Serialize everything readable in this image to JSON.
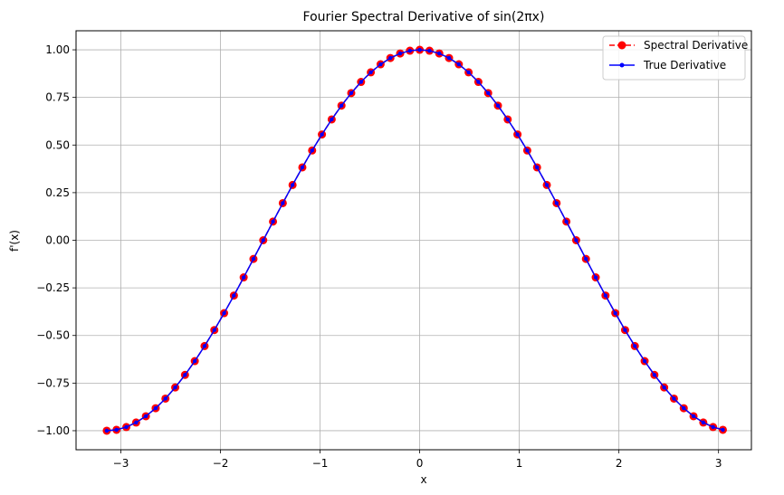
{
  "chart_data": {
    "type": "line",
    "title": "Fourier Spectral Derivative of sin(2πx)",
    "xlabel": "x",
    "ylabel": "f'(x)",
    "xlim": [
      -3.45,
      3.33
    ],
    "ylim": [
      -1.1,
      1.1
    ],
    "xticks": [
      -3,
      -2,
      -1,
      0,
      1,
      2,
      3
    ],
    "xtick_labels": [
      "−3",
      "−2",
      "−1",
      "0",
      "1",
      "2",
      "3"
    ],
    "yticks": [
      -1.0,
      -0.75,
      -0.5,
      -0.25,
      0.0,
      0.25,
      0.5,
      0.75,
      1.0
    ],
    "ytick_labels": [
      "−1.00",
      "−0.75",
      "−0.50",
      "−0.25",
      "0.00",
      "0.25",
      "0.50",
      "0.75",
      "1.00"
    ],
    "grid": true,
    "legend_position": "top-right",
    "x": [
      -3.1416,
      -3.0434,
      -2.9452,
      -2.8471,
      -2.7489,
      -2.6507,
      -2.5525,
      -2.4544,
      -2.3562,
      -2.258,
      -2.1598,
      -2.0617,
      -1.9635,
      -1.8653,
      -1.7671,
      -1.669,
      -1.5708,
      -1.4726,
      -1.3744,
      -1.2763,
      -1.1781,
      -1.0799,
      -0.9817,
      -0.8836,
      -0.7854,
      -0.6872,
      -0.589,
      -0.4909,
      -0.3927,
      -0.2945,
      -0.1963,
      -0.0982,
      0.0,
      0.0982,
      0.1963,
      0.2945,
      0.3927,
      0.4909,
      0.589,
      0.6872,
      0.7854,
      0.8836,
      0.9817,
      1.0799,
      1.1781,
      1.2763,
      1.3744,
      1.4726,
      1.5708,
      1.669,
      1.7671,
      1.8653,
      1.9635,
      2.0617,
      2.1598,
      2.258,
      2.3562,
      2.4544,
      2.5525,
      2.6507,
      2.7489,
      2.8471,
      2.9452,
      3.0434
    ],
    "series": [
      {
        "name": "Spectral Derivative",
        "color": "#ff0000",
        "style": "dashed-circle",
        "values": [
          -1.0,
          -0.9952,
          -0.9808,
          -0.9569,
          -0.9239,
          -0.8819,
          -0.8315,
          -0.773,
          -0.7071,
          -0.6344,
          -0.5556,
          -0.4714,
          -0.3827,
          -0.2903,
          -0.1951,
          -0.098,
          0.0,
          0.098,
          0.1951,
          0.2903,
          0.3827,
          0.4714,
          0.5556,
          0.6344,
          0.7071,
          0.773,
          0.8315,
          0.8819,
          0.9239,
          0.9569,
          0.9808,
          0.9952,
          1.0,
          0.9952,
          0.9808,
          0.9569,
          0.9239,
          0.8819,
          0.8315,
          0.773,
          0.7071,
          0.6344,
          0.5556,
          0.4714,
          0.3827,
          0.2903,
          0.1951,
          0.098,
          0.0,
          -0.098,
          -0.1951,
          -0.2903,
          -0.3827,
          -0.4714,
          -0.5556,
          -0.6344,
          -0.7071,
          -0.773,
          -0.8315,
          -0.8819,
          -0.9239,
          -0.9569,
          -0.9808,
          -0.9952
        ]
      },
      {
        "name": "True Derivative",
        "color": "#0000ff",
        "style": "solid-dot",
        "values": [
          -1.0,
          -0.9952,
          -0.9808,
          -0.9569,
          -0.9239,
          -0.8819,
          -0.8315,
          -0.773,
          -0.7071,
          -0.6344,
          -0.5556,
          -0.4714,
          -0.3827,
          -0.2903,
          -0.1951,
          -0.098,
          0.0,
          0.098,
          0.1951,
          0.2903,
          0.3827,
          0.4714,
          0.5556,
          0.6344,
          0.7071,
          0.773,
          0.8315,
          0.8819,
          0.9239,
          0.9569,
          0.9808,
          0.9952,
          1.0,
          0.9952,
          0.9808,
          0.9569,
          0.9239,
          0.8819,
          0.8315,
          0.773,
          0.7071,
          0.6344,
          0.5556,
          0.4714,
          0.3827,
          0.2903,
          0.1951,
          0.098,
          0.0,
          -0.098,
          -0.1951,
          -0.2903,
          -0.3827,
          -0.4714,
          -0.5556,
          -0.6344,
          -0.7071,
          -0.773,
          -0.8315,
          -0.8819,
          -0.9239,
          -0.9569,
          -0.9808,
          -0.9952
        ]
      }
    ]
  }
}
